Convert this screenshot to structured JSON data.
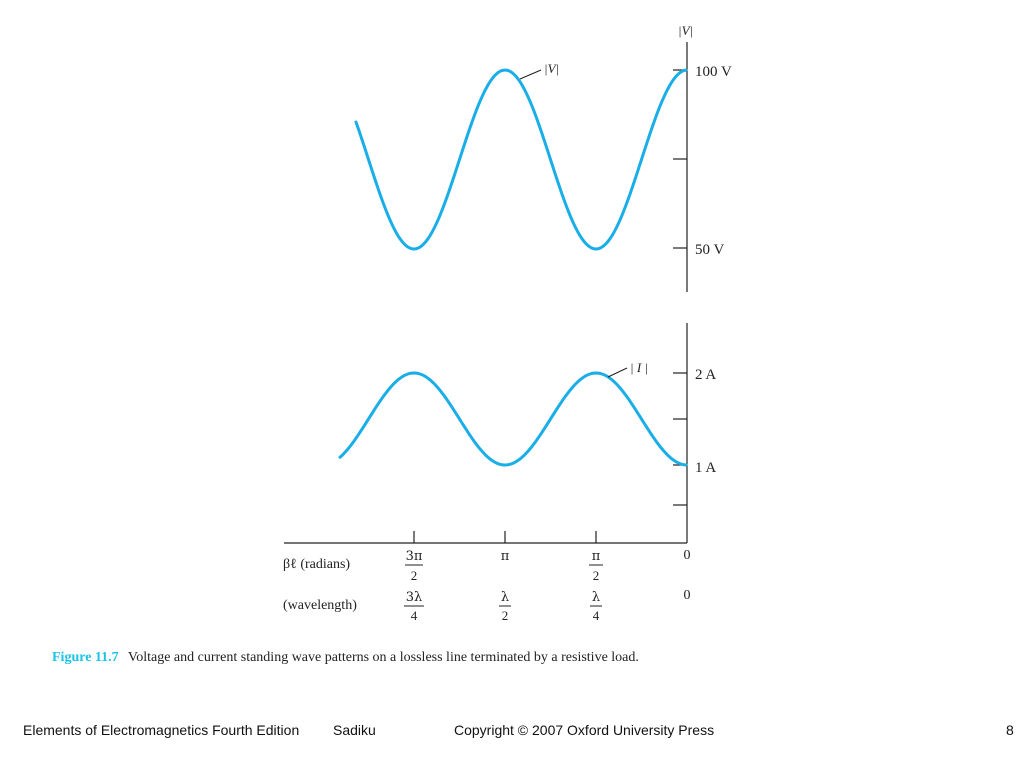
{
  "figure": {
    "voltage_axis_title": "|V|",
    "voltage_curve_label": "|V|",
    "voltage_ticks": [
      "100 V",
      "50 V"
    ],
    "current_curve_label": "| I |",
    "current_ticks": [
      "2 A",
      "1 A"
    ],
    "row_radians_label": "βℓ (radians)",
    "row_wavelength_label": "(wavelength)",
    "radians_ticks": [
      {
        "num": "3π",
        "den": "2"
      },
      {
        "num": "π",
        "den": ""
      },
      {
        "num": "π",
        "den": "2"
      },
      {
        "num": "0",
        "den": ""
      }
    ],
    "wavelength_ticks": [
      {
        "num": "3λ",
        "den": "4"
      },
      {
        "num": "λ",
        "den": "2"
      },
      {
        "num": "λ",
        "den": "4"
      },
      {
        "num": "0",
        "den": ""
      }
    ],
    "curve_color": "#19aee8"
  },
  "caption": {
    "figure_number": "Figure 11.7",
    "text": "Voltage and current standing wave patterns on a lossless line terminated by a resistive load."
  },
  "footer": {
    "book_title": "Elements of Electromagnetics Fourth Edition",
    "author": "Sadiku",
    "copyright": "Copyright © 2007 Oxford University Press",
    "page_number": "8"
  }
}
